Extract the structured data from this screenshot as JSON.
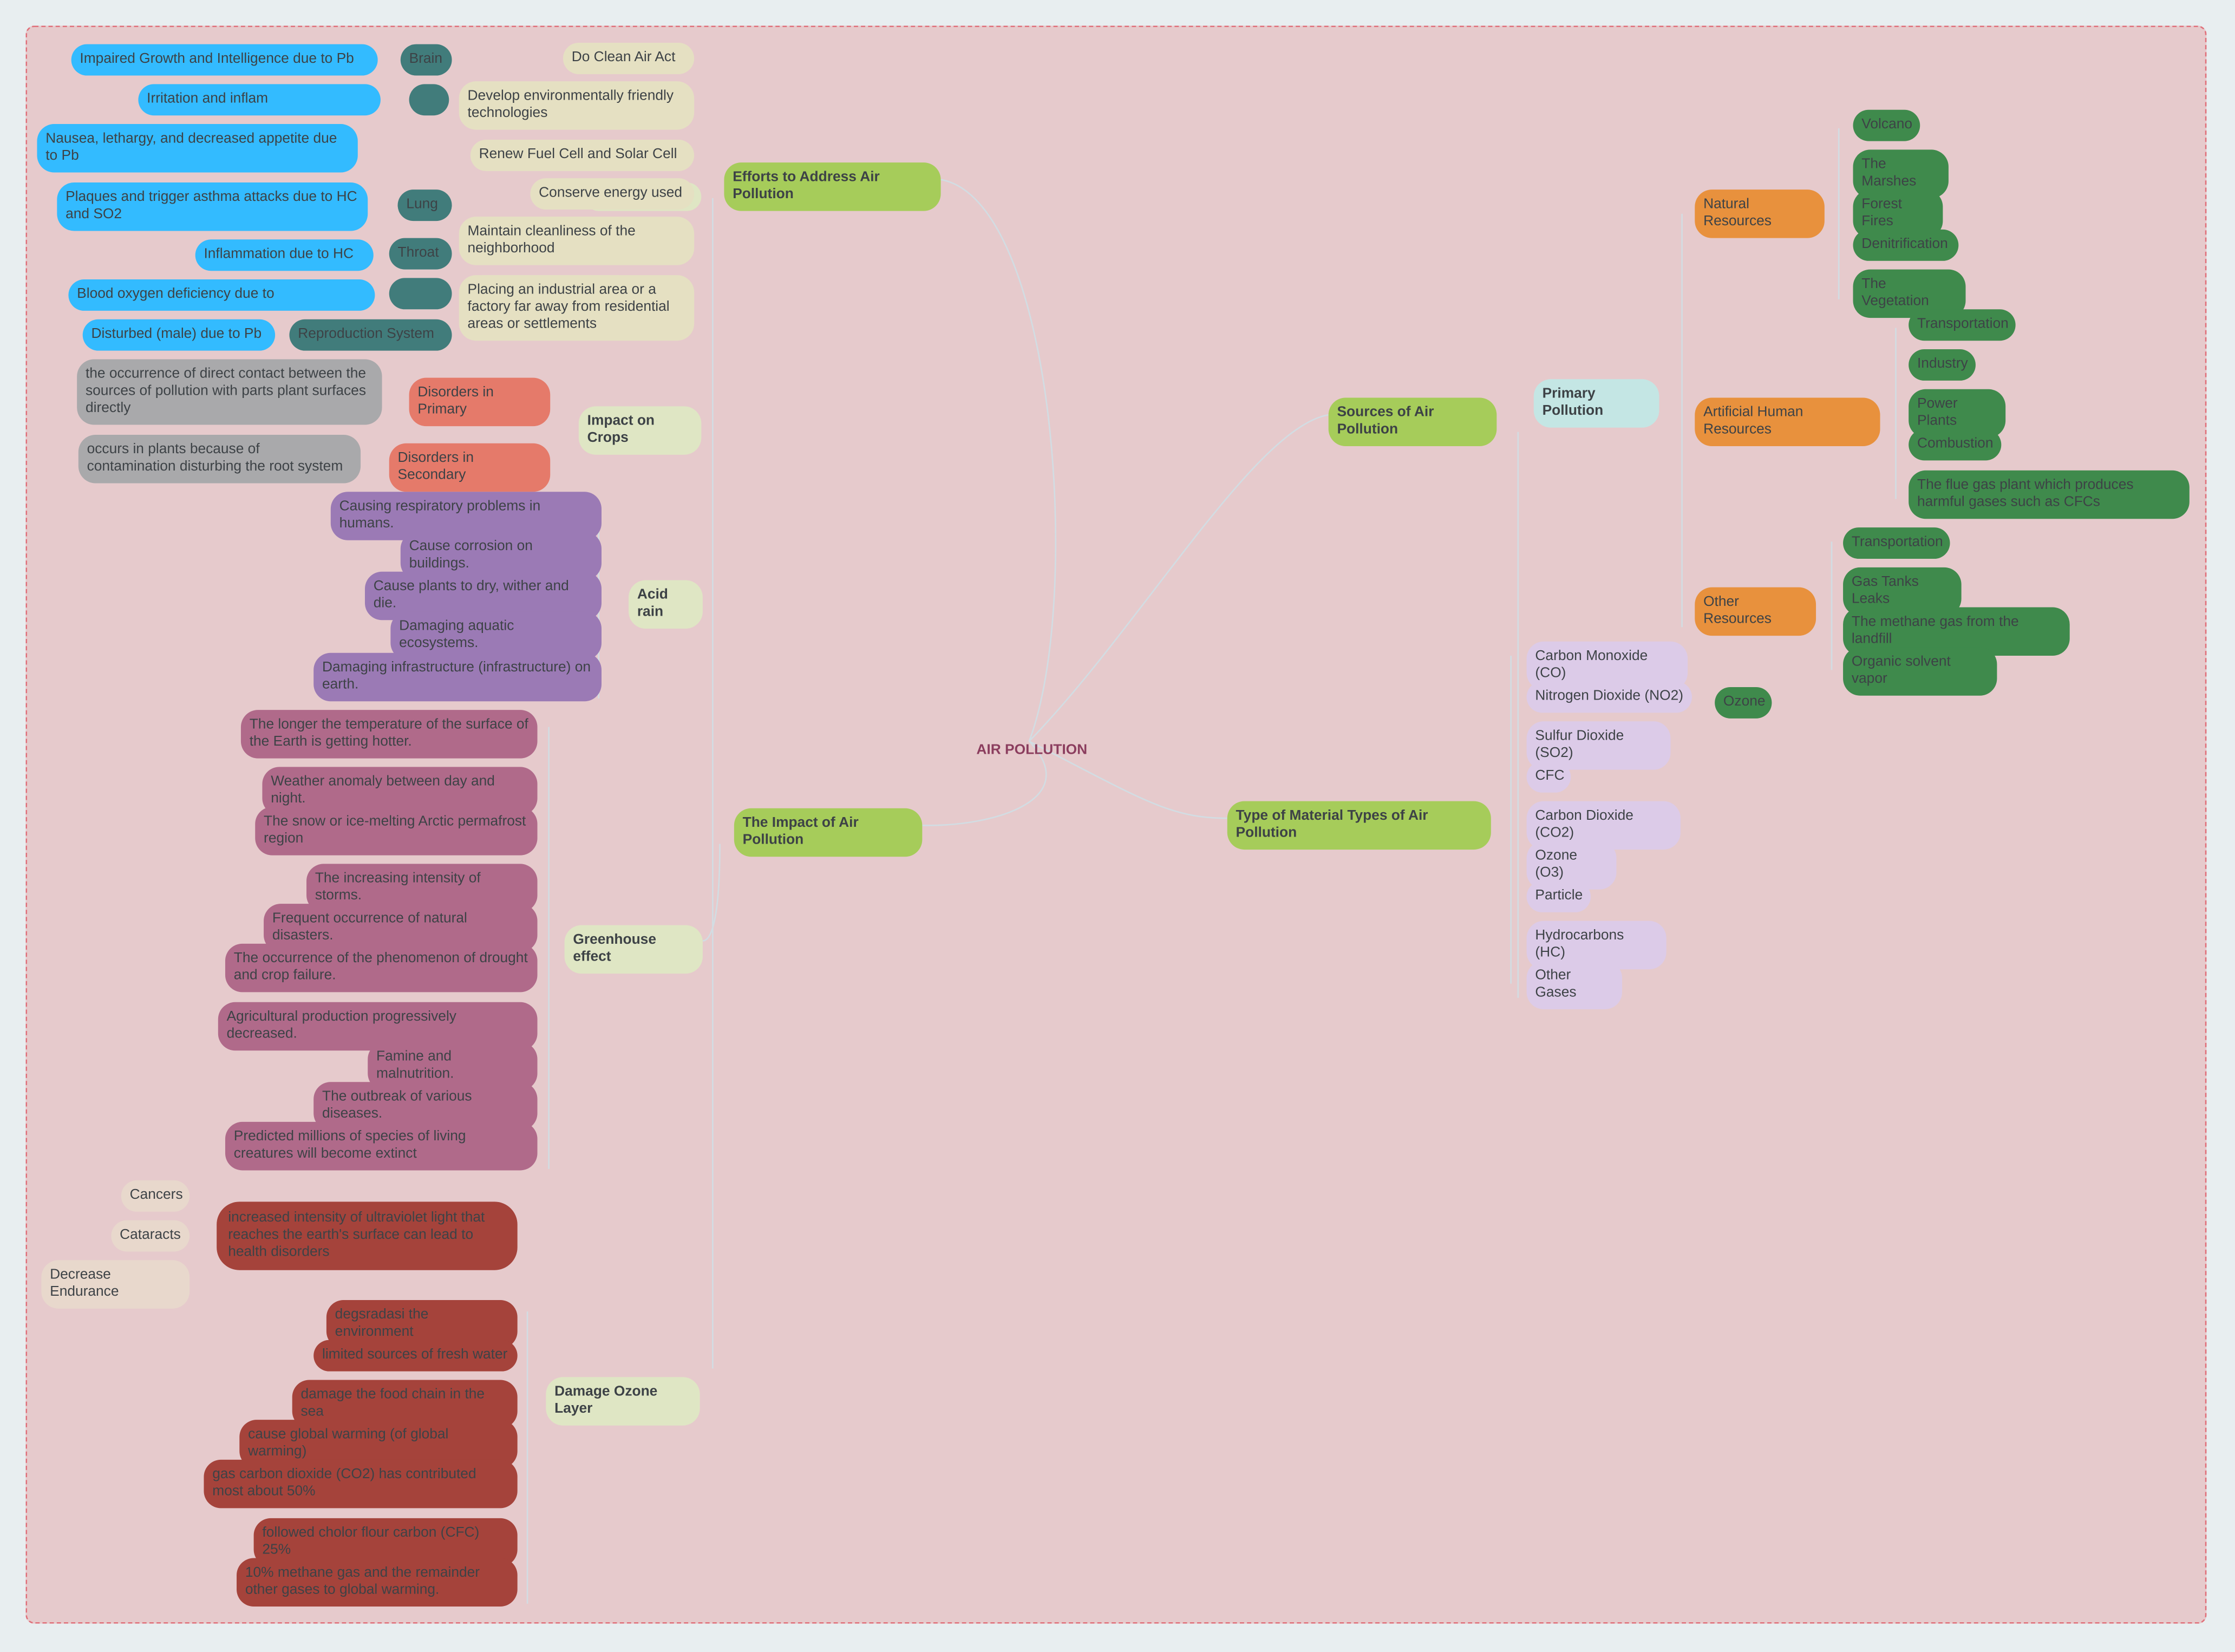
{
  "center": "AIR POLLUTION",
  "efforts": {
    "title": "Efforts to Address Air Pollution",
    "items": [
      "Do Clean Air Act",
      "Develop environmentally friendly technologies",
      "Renew Fuel Cell and Solar Cell",
      "Conserve energy used",
      "Maintain cleanliness of the neighborhood",
      "Placing an industrial area or a factory far away from residential areas or settlements"
    ]
  },
  "health": {
    "organs": [
      "Brain",
      "Lung",
      "Throat",
      "Reproduction System"
    ],
    "effects": [
      "Impaired Growth and Intelligence due to Pb",
      "Irritation and inflam",
      "Nausea, lethargy, and decreased appetite due to Pb",
      "Plaques and trigger asthma attacks due to HC and SO2",
      "Inflammation due to HC",
      "Blood oxygen deficiency due to",
      "Disturbed (male) due to Pb"
    ]
  },
  "impact": {
    "title": "The Impact of Air Pollution",
    "crops": {
      "title": "Impact on Crops",
      "primary": "Disorders in Primary",
      "secondary": "Disorders in Secondary",
      "primary_desc": "the occurrence of direct contact between the sources of pollution with parts plant surfaces directly",
      "secondary_desc": "occurs in plants because of contamination disturbing the root system"
    },
    "acid_rain": {
      "title": "Acid rain",
      "items": [
        "Causing respiratory problems in humans.",
        "Cause corrosion on buildings.",
        "Cause plants to dry, wither and die.",
        "Damaging aquatic ecosystems.",
        "Damaging infrastructure (infrastructure) on earth."
      ]
    },
    "greenhouse": {
      "title": "Greenhouse effect",
      "items": [
        "The longer the temperature of the surface of the Earth is getting hotter.",
        "Weather anomaly between day and night.",
        "The snow or ice-melting Arctic permafrost region",
        "The increasing intensity of storms.",
        "Frequent occurrence of natural disasters.",
        "The occurrence of the phenomenon of drought and crop failure.",
        "Agricultural production progressively decreased.",
        "Famine and malnutrition.",
        "The outbreak of various diseases.",
        "Predicted millions of species of living creatures will become extinct"
      ]
    },
    "ozone": {
      "title": "Damage Ozone Layer",
      "uv": "increased intensity of ultraviolet light that reaches the earth's surface can lead to health disorders",
      "uv_effects": [
        "Cancers",
        "Cataracts",
        "Decrease Endurance"
      ],
      "items": [
        "degsradasi the environment",
        "limited sources of fresh water",
        "damage the food chain in the sea",
        "cause global warming (of global warming)",
        "gas carbon dioxide (CO2) has contributed most about 50%",
        "followed cholor flour carbon (CFC) 25%",
        "10% methane gas and the remainder other gases to global warming."
      ]
    }
  },
  "sources": {
    "title": "Sources of Air Pollution",
    "primary": "Primary Pollution",
    "natural": {
      "title": "Natural Resources",
      "items": [
        "Volcano",
        "The Marshes",
        "Forest Fires",
        "Denitrification",
        "The Vegetation"
      ]
    },
    "artificial": {
      "title": "Artificial Human Resources",
      "items": [
        "Transportation",
        "Industry",
        "Power Plants",
        "Combustion",
        "The flue gas plant which produces harmful gases such as CFCs"
      ]
    },
    "other": {
      "title": "Other Resources",
      "items": [
        "Transportation",
        "Gas Tanks Leaks",
        "The methane gas from the landfill",
        "Organic solvent vapor"
      ]
    }
  },
  "types": {
    "title": "Type of Material Types of Air Pollution",
    "items": [
      "Carbon Monoxide (CO)",
      "Nitrogen Dioxide (NO2)",
      "Sulfur Dioxide (SO2)",
      "CFC",
      "Carbon Dioxide (CO2)",
      "Ozone (O3)",
      "Particle",
      "Hydrocarbons (HC)",
      "Other Gases"
    ],
    "ozone_child": "Ozone"
  }
}
